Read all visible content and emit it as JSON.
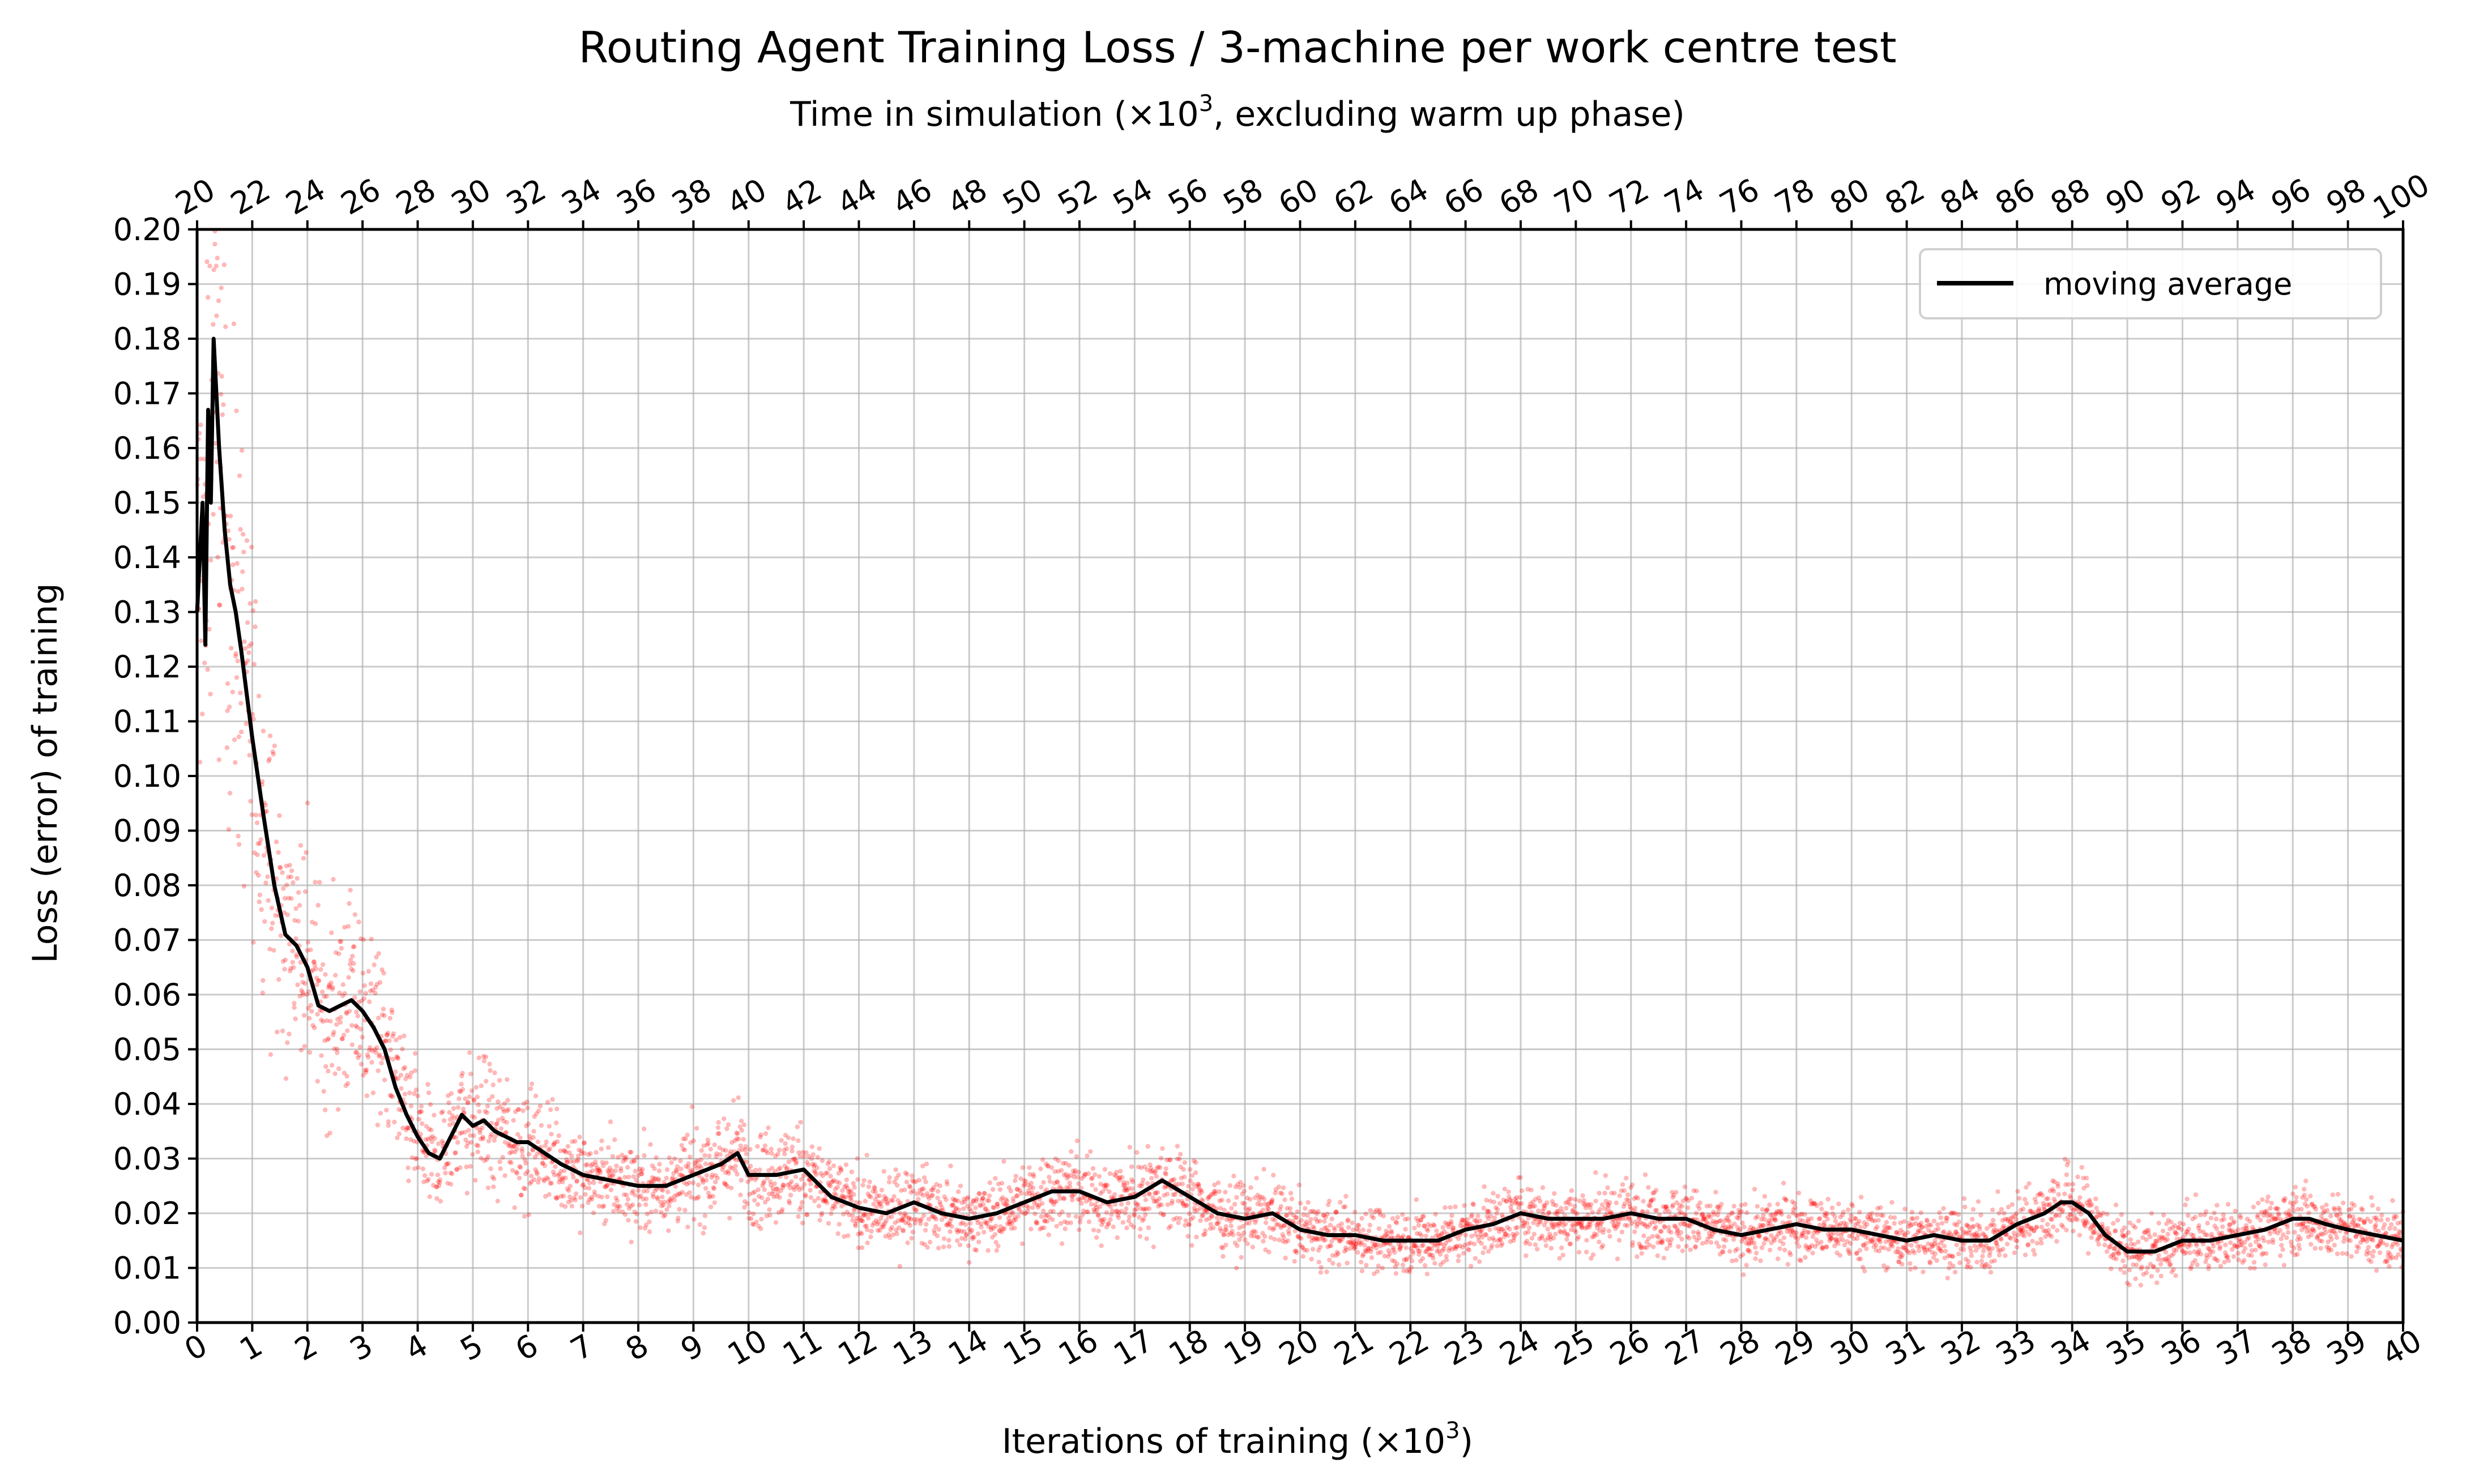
{
  "chart_data": {
    "type": "scatter",
    "title": "Routing Agent Training Loss / 3-machine per work centre test",
    "subtitle_prefix": "Time in simulation (×10",
    "subtitle_exp": "3",
    "subtitle_suffix": ", excluding warm up phase)",
    "xlabel_prefix": "Iterations of training (×10",
    "xlabel_exp": "3",
    "xlabel_suffix": ")",
    "ylabel": "Loss (error) of training",
    "xlim": [
      0,
      40
    ],
    "ylim": [
      0,
      0.2
    ],
    "x_ticks": [
      0,
      1,
      2,
      3,
      4,
      5,
      6,
      7,
      8,
      9,
      10,
      11,
      12,
      13,
      14,
      15,
      16,
      17,
      18,
      19,
      20,
      21,
      22,
      23,
      24,
      25,
      26,
      27,
      28,
      29,
      30,
      31,
      32,
      33,
      34,
      35,
      36,
      37,
      38,
      39,
      40
    ],
    "x_top_ticks": [
      20,
      22,
      24,
      26,
      28,
      30,
      32,
      34,
      36,
      38,
      40,
      42,
      44,
      46,
      48,
      50,
      52,
      54,
      56,
      58,
      60,
      62,
      64,
      66,
      68,
      70,
      72,
      74,
      76,
      78,
      80,
      82,
      84,
      86,
      88,
      90,
      92,
      94,
      96,
      98,
      100
    ],
    "y_ticks": [
      "0.00",
      "0.01",
      "0.02",
      "0.03",
      "0.04",
      "0.05",
      "0.06",
      "0.07",
      "0.08",
      "0.09",
      "0.10",
      "0.11",
      "0.12",
      "0.13",
      "0.14",
      "0.15",
      "0.16",
      "0.17",
      "0.18",
      "0.19",
      "0.20"
    ],
    "grid": true,
    "legend_position": "top-right",
    "series": [
      {
        "name": "moving average",
        "color": "#000000",
        "type": "line",
        "x": [
          0,
          0.1,
          0.15,
          0.2,
          0.25,
          0.3,
          0.4,
          0.5,
          0.6,
          0.7,
          0.8,
          0.9,
          1.0,
          1.2,
          1.4,
          1.6,
          1.8,
          2.0,
          2.2,
          2.4,
          2.6,
          2.8,
          3.0,
          3.2,
          3.4,
          3.6,
          3.8,
          4.0,
          4.2,
          4.4,
          4.6,
          4.8,
          5.0,
          5.2,
          5.4,
          5.6,
          5.8,
          6.0,
          6.3,
          6.6,
          7.0,
          7.5,
          8.0,
          8.5,
          9.0,
          9.5,
          9.8,
          10.0,
          10.5,
          11.0,
          11.5,
          12.0,
          12.5,
          13.0,
          13.5,
          14.0,
          14.5,
          15.0,
          15.5,
          16.0,
          16.5,
          17.0,
          17.5,
          18.0,
          18.5,
          19.0,
          19.5,
          20.0,
          20.5,
          21.0,
          21.5,
          22.0,
          22.5,
          23.0,
          23.5,
          24.0,
          24.5,
          25.0,
          25.5,
          26.0,
          26.5,
          27.0,
          27.5,
          28.0,
          28.5,
          29.0,
          29.5,
          30.0,
          30.5,
          31.0,
          31.5,
          32.0,
          32.5,
          33.0,
          33.5,
          33.8,
          34.0,
          34.3,
          34.6,
          35.0,
          35.5,
          36.0,
          36.5,
          37.0,
          37.5,
          38.0,
          38.3,
          38.6,
          39.0,
          39.5,
          40.0
        ],
        "y": [
          0.13,
          0.15,
          0.124,
          0.167,
          0.15,
          0.18,
          0.16,
          0.145,
          0.135,
          0.13,
          0.123,
          0.115,
          0.107,
          0.093,
          0.08,
          0.071,
          0.069,
          0.065,
          0.058,
          0.057,
          0.058,
          0.059,
          0.057,
          0.054,
          0.05,
          0.043,
          0.038,
          0.034,
          0.031,
          0.03,
          0.034,
          0.038,
          0.036,
          0.037,
          0.035,
          0.034,
          0.033,
          0.033,
          0.031,
          0.029,
          0.027,
          0.026,
          0.025,
          0.025,
          0.027,
          0.029,
          0.031,
          0.027,
          0.027,
          0.028,
          0.023,
          0.021,
          0.02,
          0.022,
          0.02,
          0.019,
          0.02,
          0.022,
          0.024,
          0.024,
          0.022,
          0.023,
          0.026,
          0.023,
          0.02,
          0.019,
          0.02,
          0.017,
          0.016,
          0.016,
          0.015,
          0.015,
          0.015,
          0.017,
          0.018,
          0.02,
          0.019,
          0.019,
          0.019,
          0.02,
          0.019,
          0.019,
          0.017,
          0.016,
          0.017,
          0.018,
          0.017,
          0.017,
          0.016,
          0.015,
          0.016,
          0.015,
          0.015,
          0.018,
          0.02,
          0.022,
          0.022,
          0.02,
          0.016,
          0.013,
          0.013,
          0.015,
          0.015,
          0.016,
          0.017,
          0.019,
          0.019,
          0.018,
          0.017,
          0.016,
          0.015
        ]
      },
      {
        "color": "#ff0000",
        "type": "scatter",
        "description": "raw per-iteration loss points, scattered around the moving average"
      }
    ]
  }
}
